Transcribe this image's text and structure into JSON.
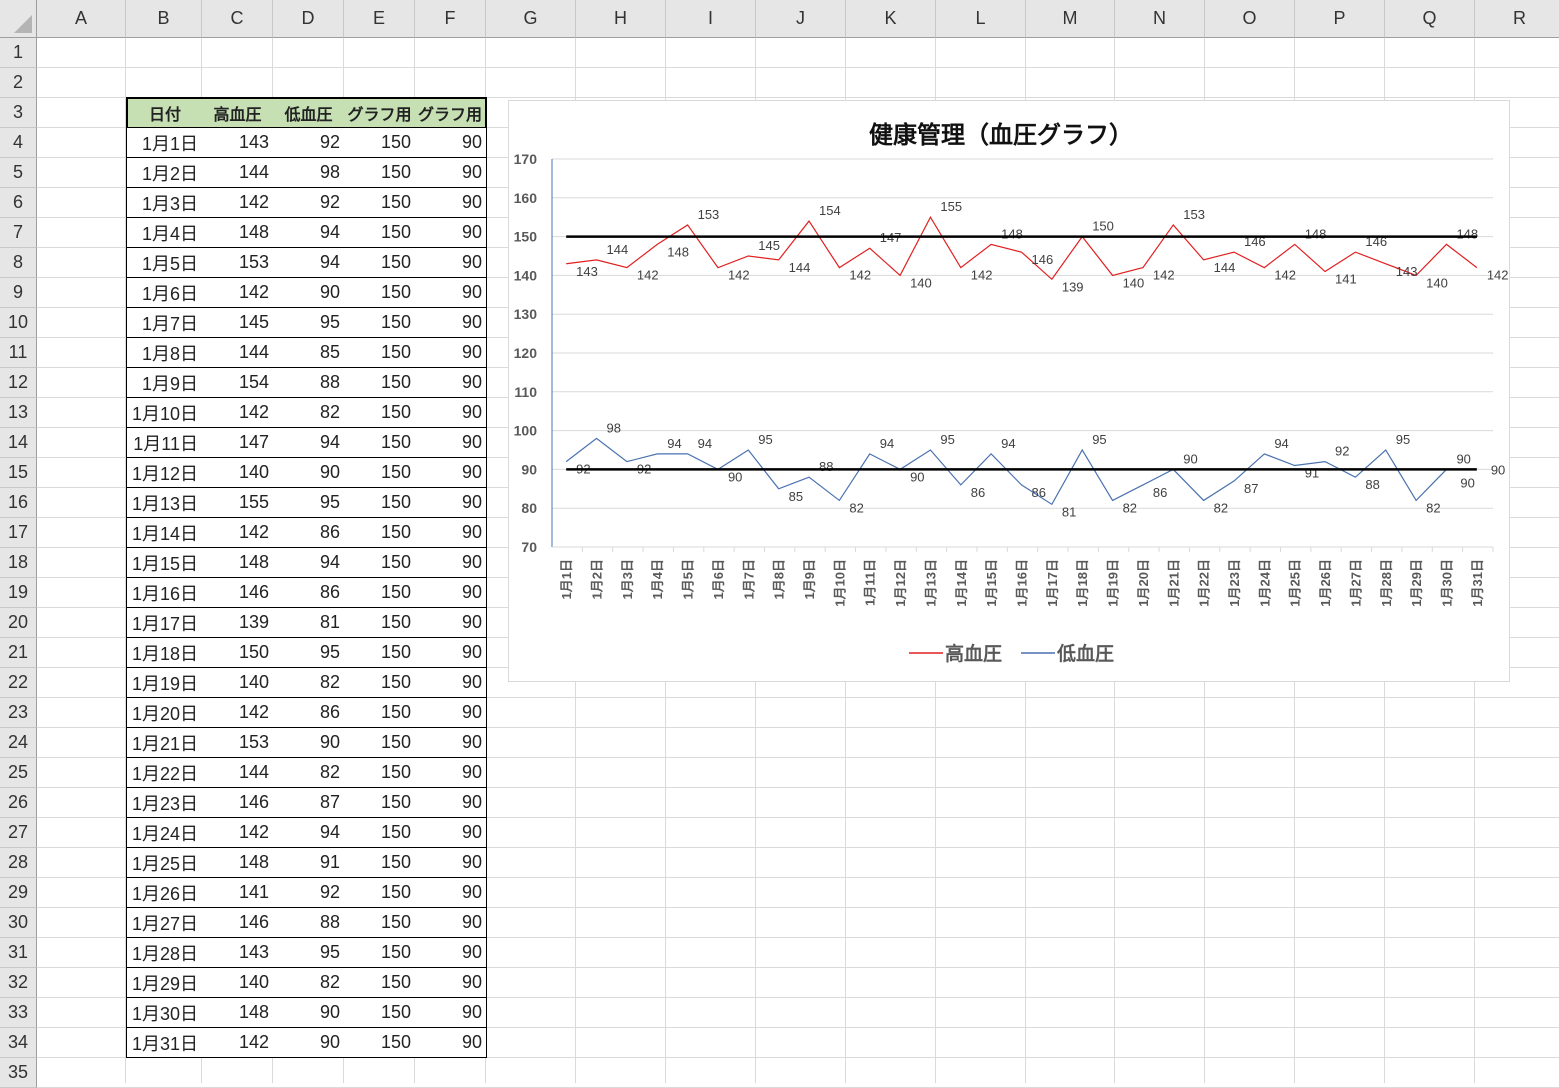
{
  "columns": [
    "A",
    "B",
    "C",
    "D",
    "E",
    "F",
    "G",
    "H",
    "I",
    "J",
    "K",
    "L",
    "M",
    "N",
    "O",
    "P",
    "Q",
    "R"
  ],
  "row_numbers": [
    "1",
    "2",
    "3",
    "4",
    "5",
    "6",
    "7",
    "8",
    "9",
    "10",
    "11",
    "12",
    "13",
    "14",
    "15",
    "16",
    "17",
    "18",
    "19",
    "20",
    "21",
    "22",
    "23",
    "24",
    "25",
    "26",
    "27",
    "28",
    "29",
    "30",
    "31",
    "32",
    "33",
    "34",
    "35"
  ],
  "table": {
    "headers": [
      "日付",
      "高血圧",
      "低血圧",
      "グラフ用",
      "グラフ用"
    ],
    "rows": [
      [
        "1月1日",
        "143",
        "92",
        "150",
        "90"
      ],
      [
        "1月2日",
        "144",
        "98",
        "150",
        "90"
      ],
      [
        "1月3日",
        "142",
        "92",
        "150",
        "90"
      ],
      [
        "1月4日",
        "148",
        "94",
        "150",
        "90"
      ],
      [
        "1月5日",
        "153",
        "94",
        "150",
        "90"
      ],
      [
        "1月6日",
        "142",
        "90",
        "150",
        "90"
      ],
      [
        "1月7日",
        "145",
        "95",
        "150",
        "90"
      ],
      [
        "1月8日",
        "144",
        "85",
        "150",
        "90"
      ],
      [
        "1月9日",
        "154",
        "88",
        "150",
        "90"
      ],
      [
        "1月10日",
        "142",
        "82",
        "150",
        "90"
      ],
      [
        "1月11日",
        "147",
        "94",
        "150",
        "90"
      ],
      [
        "1月12日",
        "140",
        "90",
        "150",
        "90"
      ],
      [
        "1月13日",
        "155",
        "95",
        "150",
        "90"
      ],
      [
        "1月14日",
        "142",
        "86",
        "150",
        "90"
      ],
      [
        "1月15日",
        "148",
        "94",
        "150",
        "90"
      ],
      [
        "1月16日",
        "146",
        "86",
        "150",
        "90"
      ],
      [
        "1月17日",
        "139",
        "81",
        "150",
        "90"
      ],
      [
        "1月18日",
        "150",
        "95",
        "150",
        "90"
      ],
      [
        "1月19日",
        "140",
        "82",
        "150",
        "90"
      ],
      [
        "1月20日",
        "142",
        "86",
        "150",
        "90"
      ],
      [
        "1月21日",
        "153",
        "90",
        "150",
        "90"
      ],
      [
        "1月22日",
        "144",
        "82",
        "150",
        "90"
      ],
      [
        "1月23日",
        "146",
        "87",
        "150",
        "90"
      ],
      [
        "1月24日",
        "142",
        "94",
        "150",
        "90"
      ],
      [
        "1月25日",
        "148",
        "91",
        "150",
        "90"
      ],
      [
        "1月26日",
        "141",
        "92",
        "150",
        "90"
      ],
      [
        "1月27日",
        "146",
        "88",
        "150",
        "90"
      ],
      [
        "1月28日",
        "143",
        "95",
        "150",
        "90"
      ],
      [
        "1月29日",
        "140",
        "82",
        "150",
        "90"
      ],
      [
        "1月30日",
        "148",
        "90",
        "150",
        "90"
      ],
      [
        "1月31日",
        "142",
        "90",
        "150",
        "90"
      ]
    ]
  },
  "chart_data": {
    "type": "line",
    "title": "健康管理（血圧グラフ）",
    "categories": [
      "1月1日",
      "1月2日",
      "1月3日",
      "1月4日",
      "1月5日",
      "1月6日",
      "1月7日",
      "1月8日",
      "1月9日",
      "1月10日",
      "1月11日",
      "1月12日",
      "1月13日",
      "1月14日",
      "1月15日",
      "1月16日",
      "1月17日",
      "1月18日",
      "1月19日",
      "1月20日",
      "1月21日",
      "1月22日",
      "1月23日",
      "1月24日",
      "1月25日",
      "1月26日",
      "1月27日",
      "1月28日",
      "1月29日",
      "1月30日",
      "1月31日"
    ],
    "ylim": [
      70,
      170
    ],
    "yticks": [
      "70",
      "80",
      "90",
      "100",
      "110",
      "120",
      "130",
      "140",
      "150",
      "160",
      "170"
    ],
    "grid": true,
    "legend_position": "bottom",
    "series": [
      {
        "name": "高血圧",
        "color": "#e02020",
        "show_in_legend": true,
        "data_labels": true,
        "values": [
          143,
          144,
          142,
          148,
          153,
          142,
          145,
          144,
          154,
          142,
          147,
          140,
          155,
          142,
          148,
          146,
          139,
          150,
          140,
          142,
          153,
          144,
          146,
          142,
          148,
          141,
          146,
          143,
          140,
          148,
          142
        ]
      },
      {
        "name": "低血圧",
        "color": "#4a72b0",
        "show_in_legend": true,
        "data_labels": true,
        "values": [
          92,
          98,
          92,
          94,
          94,
          90,
          95,
          85,
          88,
          82,
          94,
          90,
          95,
          86,
          94,
          86,
          81,
          95,
          82,
          86,
          90,
          82,
          87,
          94,
          91,
          92,
          88,
          95,
          82,
          90,
          90
        ]
      },
      {
        "color": "#000000",
        "show_in_legend": false,
        "data_labels": false,
        "values": [
          150,
          150,
          150,
          150,
          150,
          150,
          150,
          150,
          150,
          150,
          150,
          150,
          150,
          150,
          150,
          150,
          150,
          150,
          150,
          150,
          150,
          150,
          150,
          150,
          150,
          150,
          150,
          150,
          150,
          150,
          150
        ]
      },
      {
        "color": "#000000",
        "show_in_legend": false,
        "data_labels": "last",
        "values": [
          90,
          90,
          90,
          90,
          90,
          90,
          90,
          90,
          90,
          90,
          90,
          90,
          90,
          90,
          90,
          90,
          90,
          90,
          90,
          90,
          90,
          90,
          90,
          90,
          90,
          90,
          90,
          90,
          90,
          90,
          90
        ]
      }
    ]
  }
}
